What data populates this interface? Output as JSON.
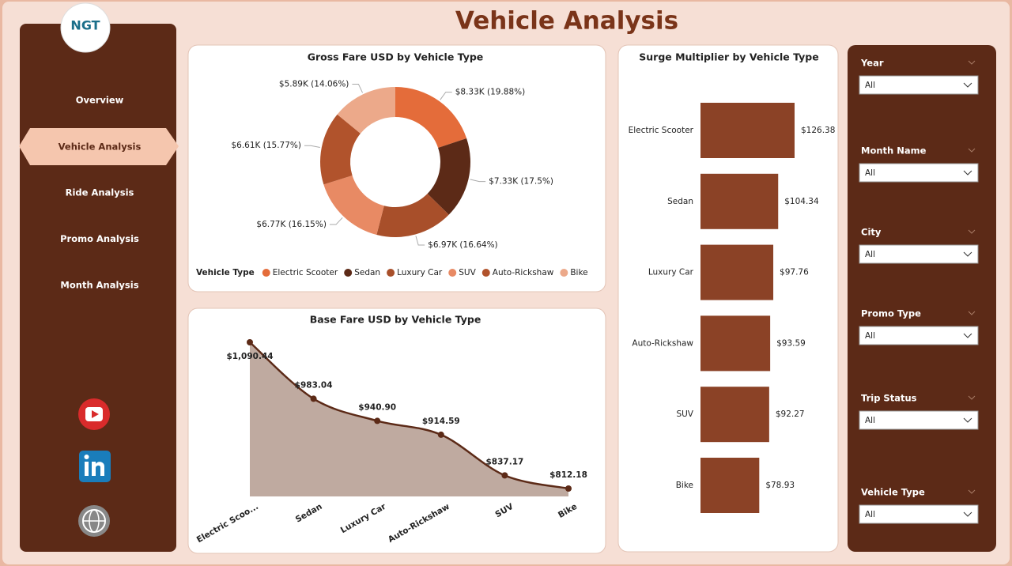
{
  "header": {
    "title": "Vehicle Analysis",
    "logo": "NGT"
  },
  "nav": [
    "Overview",
    "Vehicle Analysis",
    "Ride Analysis",
    "Promo Analysis",
    "Month Analysis"
  ],
  "filters": [
    {
      "label": "Year",
      "value": "All"
    },
    {
      "label": "Month Name",
      "value": "All"
    },
    {
      "label": "City",
      "value": "All"
    },
    {
      "label": "Promo Type",
      "value": "All"
    },
    {
      "label": "Trip Status",
      "value": "All"
    },
    {
      "label": "Vehicle Type",
      "value": "All"
    }
  ],
  "chart_data": [
    {
      "type": "donut",
      "title": "Gross Fare USD by Vehicle Type",
      "legend_title": "Vehicle Type",
      "categories": [
        "Electric Scooter",
        "Sedan",
        "Luxury Car",
        "SUV",
        "Auto-Rickshaw",
        "Bike"
      ],
      "values": [
        8330,
        7330,
        6970,
        6770,
        6610,
        5890
      ],
      "value_labels": [
        "$8.33K (19.88%)",
        "$7.33K (17.5%)",
        "$6.97K (16.64%)",
        "$6.77K (16.15%)",
        "$6.61K (15.77%)",
        "$5.89K (14.06%)"
      ],
      "colors": [
        "#e46c3a",
        "#5c2a17",
        "#a84f2a",
        "#e88a64",
        "#b1532c",
        "#eca98a"
      ]
    },
    {
      "type": "area",
      "title": "Base Fare USD by Vehicle Type",
      "categories": [
        "Electric Scoo...",
        "Sedan",
        "Luxury Car",
        "Auto-Rickshaw",
        "SUV",
        "Bike"
      ],
      "values": [
        1090.44,
        983.04,
        940.9,
        914.59,
        837.17,
        812.18
      ],
      "value_labels": [
        "$1,090.44",
        "$983.04",
        "$940.90",
        "$914.59",
        "$837.17",
        "$812.18"
      ],
      "color": "#5c2a17",
      "fill": "#bfaaa0"
    },
    {
      "type": "hbar",
      "title": "Surge Multiplier by Vehicle Type",
      "categories": [
        "Electric Scooter",
        "Sedan",
        "Luxury Car",
        "Auto-Rickshaw",
        "SUV",
        "Bike"
      ],
      "values": [
        126.38,
        104.34,
        97.76,
        93.59,
        92.27,
        78.93
      ],
      "value_labels": [
        "$126.38",
        "$104.34",
        "$97.76",
        "$93.59",
        "$92.27",
        "$78.93"
      ],
      "color": "#8b4226"
    }
  ]
}
